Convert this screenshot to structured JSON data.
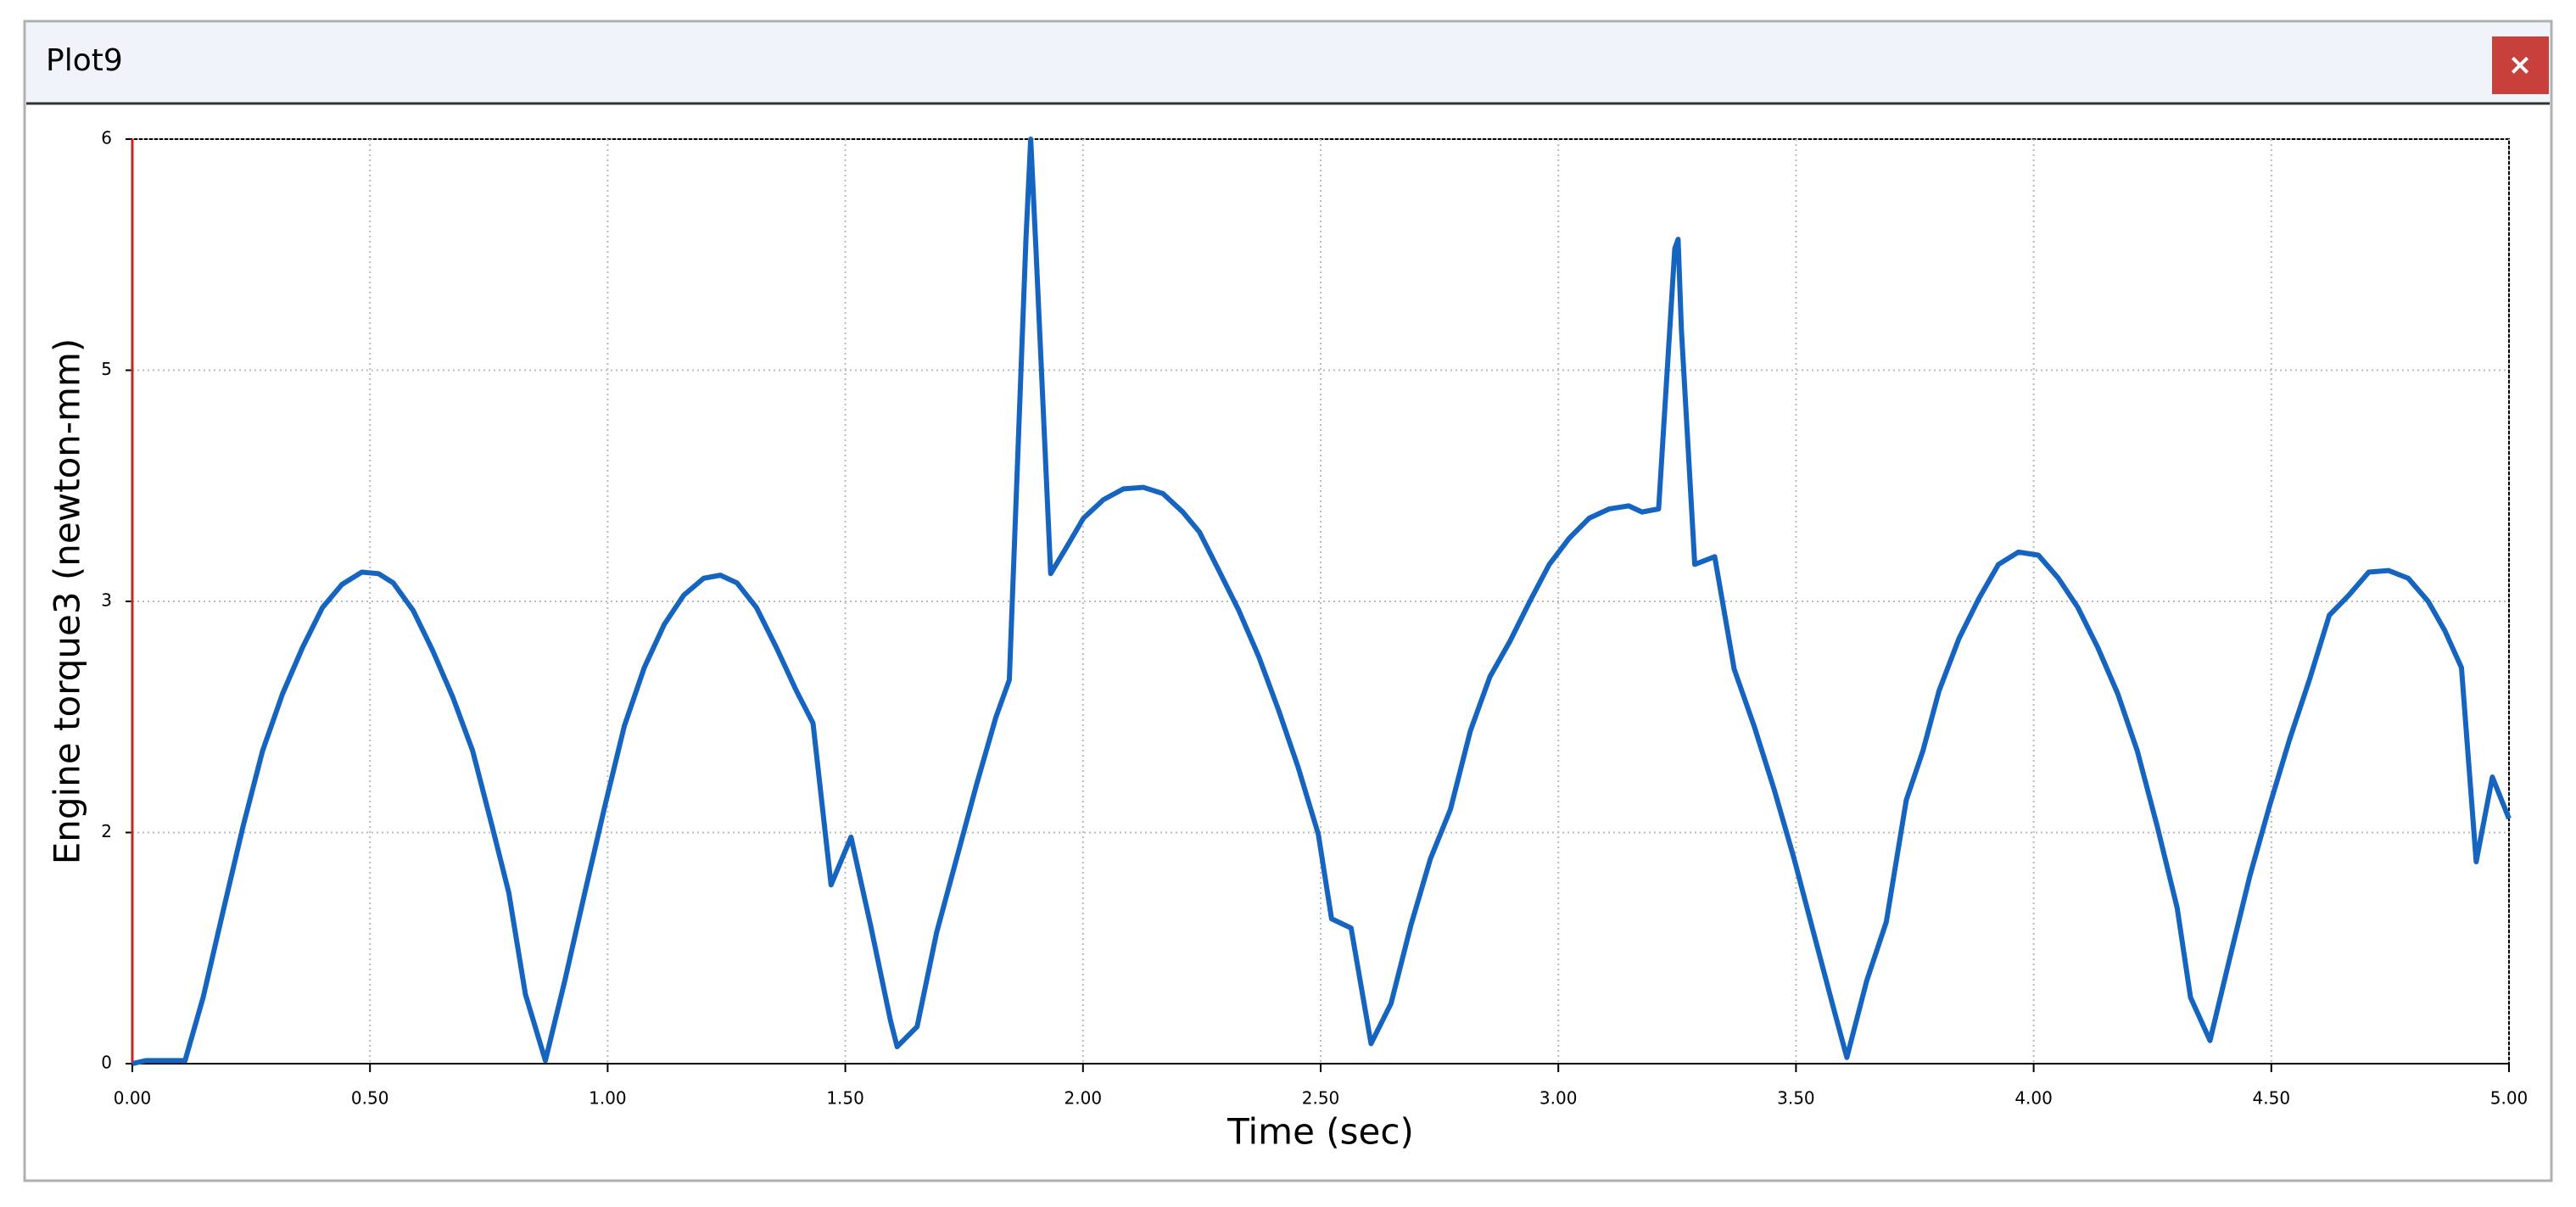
{
  "window": {
    "title": "Plot9",
    "close": "×"
  },
  "chart_data": {
    "type": "line",
    "xlabel": "Time (sec)",
    "ylabel": "Engine torque3 (newton-mm)",
    "xlim": [
      0,
      5
    ],
    "ylim": [
      0,
      6
    ],
    "xticks": [
      {
        "value": 0,
        "label": "0.00"
      },
      {
        "value": 0.5,
        "label": "0.50"
      },
      {
        "value": 1,
        "label": "1.00"
      },
      {
        "value": 1.5,
        "label": "1.50"
      },
      {
        "value": 2,
        "label": "2.00"
      },
      {
        "value": 2.5,
        "label": "2.50"
      },
      {
        "value": 3,
        "label": "3.00"
      },
      {
        "value": 3.5,
        "label": "3.50"
      },
      {
        "value": 4,
        "label": "4.00"
      },
      {
        "value": 4.5,
        "label": "4.50"
      },
      {
        "value": 5,
        "label": "5.00"
      }
    ],
    "yticks": [
      0,
      {
        "value": 1.5,
        "label": "2"
      },
      3,
      {
        "value": 4.5,
        "label": "5"
      },
      6
    ],
    "grid": true,
    "series": [
      {
        "name": "Engine torque3",
        "color": "#1565c0",
        "x": [
          0,
          0.028,
          0.111,
          0.149,
          0.191,
          0.233,
          0.274,
          0.316,
          0.358,
          0.4,
          0.441,
          0.483,
          0.518,
          0.549,
          0.591,
          0.632,
          0.674,
          0.716,
          0.757,
          0.792,
          0.827,
          0.869,
          0.91,
          0.952,
          0.994,
          1.035,
          1.077,
          1.119,
          1.16,
          1.202,
          1.237,
          1.272,
          1.313,
          1.355,
          1.397,
          1.432,
          1.47,
          1.512,
          1.553,
          1.595,
          1.609,
          1.651,
          1.692,
          1.734,
          1.776,
          1.817,
          1.845,
          1.88,
          1.89,
          1.901,
          1.932,
          1.967,
          2.001,
          2.043,
          2.085,
          2.127,
          2.168,
          2.21,
          2.245,
          2.286,
          2.328,
          2.37,
          2.412,
          2.453,
          2.495,
          2.523,
          2.564,
          2.606,
          2.648,
          2.69,
          2.731,
          2.773,
          2.815,
          2.856,
          2.898,
          2.94,
          2.981,
          3.023,
          3.065,
          3.107,
          3.148,
          3.176,
          3.211,
          3.245,
          3.252,
          3.259,
          3.287,
          3.329,
          3.37,
          3.412,
          3.454,
          3.496,
          3.537,
          3.579,
          3.607,
          3.649,
          3.69,
          3.732,
          3.767,
          3.801,
          3.843,
          3.885,
          3.926,
          3.968,
          4.01,
          4.052,
          4.093,
          4.135,
          4.177,
          4.218,
          4.26,
          4.302,
          4.33,
          4.371,
          4.413,
          4.455,
          4.496,
          4.538,
          4.58,
          4.622,
          4.663,
          4.705,
          4.747,
          4.788,
          4.83,
          4.865,
          4.9,
          4.931,
          4.965,
          5
        ],
        "values": [
          0,
          0.02,
          0.02,
          0.43,
          0.99,
          1.54,
          2.03,
          2.4,
          2.7,
          2.96,
          3.11,
          3.19,
          3.18,
          3.12,
          2.94,
          2.68,
          2.38,
          2.03,
          1.54,
          1.11,
          0.45,
          0.02,
          0.54,
          1.11,
          1.67,
          2.19,
          2.57,
          2.85,
          3.04,
          3.15,
          3.17,
          3.12,
          2.96,
          2.7,
          2.42,
          2.21,
          1.16,
          1.47,
          0.9,
          0.28,
          0.11,
          0.24,
          0.85,
          1.33,
          1.81,
          2.25,
          2.49,
          5.35,
          6,
          5.29,
          3.18,
          3.36,
          3.54,
          3.66,
          3.73,
          3.74,
          3.7,
          3.58,
          3.45,
          3.2,
          2.94,
          2.64,
          2.29,
          1.92,
          1.49,
          0.94,
          0.88,
          0.13,
          0.39,
          0.9,
          1.33,
          1.65,
          2.16,
          2.51,
          2.74,
          3,
          3.24,
          3.41,
          3.54,
          3.6,
          3.62,
          3.58,
          3.6,
          5.29,
          5.35,
          4.76,
          3.24,
          3.29,
          2.56,
          2.19,
          1.78,
          1.33,
          0.85,
          0.36,
          0.04,
          0.54,
          0.92,
          1.71,
          2.03,
          2.42,
          2.76,
          3.02,
          3.24,
          3.32,
          3.3,
          3.15,
          2.96,
          2.7,
          2.4,
          2.03,
          1.54,
          1.01,
          0.43,
          0.15,
          0.69,
          1.22,
          1.67,
          2.1,
          2.49,
          2.91,
          3.04,
          3.19,
          3.2,
          3.15,
          3,
          2.81,
          2.57,
          1.31,
          1.86,
          1.59
        ]
      }
    ]
  }
}
